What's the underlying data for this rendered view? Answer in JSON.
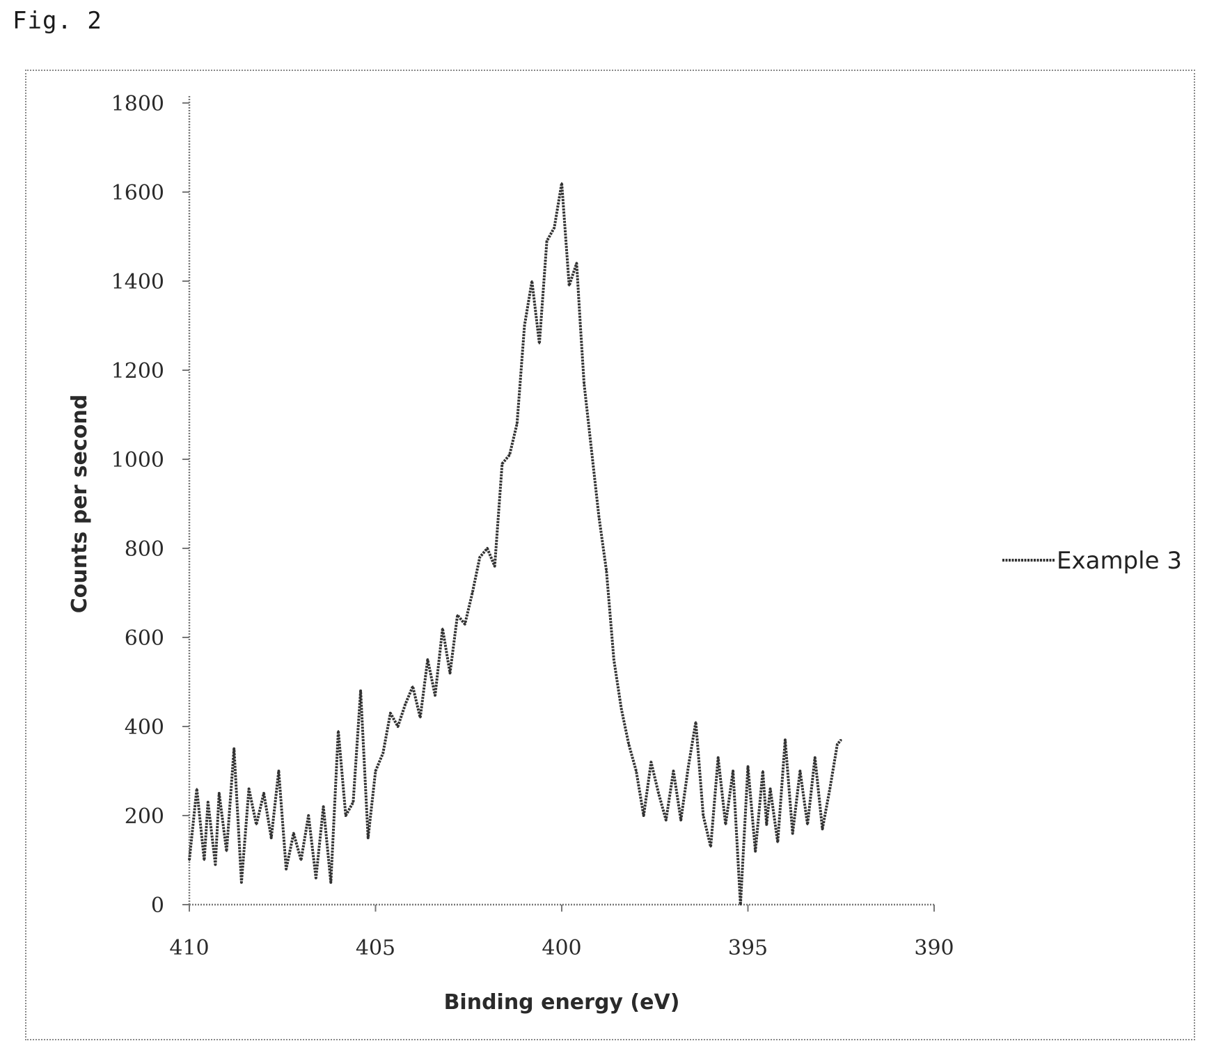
{
  "figure_label": "Fig. 2",
  "chart_data": {
    "type": "line",
    "title": "",
    "xlabel": "Binding energy (eV)",
    "ylabel": "Counts per second",
    "xlim": [
      410,
      390
    ],
    "ylim": [
      0,
      1800
    ],
    "x_reversed": true,
    "xticks": [
      "410",
      "405",
      "400",
      "395",
      "390"
    ],
    "yticks": [
      "0",
      "200",
      "400",
      "600",
      "800",
      "1000",
      "1200",
      "1400",
      "1600",
      "1800"
    ],
    "grid": false,
    "legend_position": "right",
    "series": [
      {
        "name": "Example 3",
        "color": "#333333",
        "x": [
          410,
          409.8,
          409.6,
          409.5,
          409.3,
          409.2,
          409.0,
          408.8,
          408.6,
          408.4,
          408.2,
          408.0,
          407.8,
          407.6,
          407.4,
          407.2,
          407.0,
          406.8,
          406.6,
          406.4,
          406.2,
          406.0,
          405.8,
          405.6,
          405.4,
          405.2,
          405.0,
          404.8,
          404.6,
          404.4,
          404.2,
          404.0,
          403.8,
          403.6,
          403.4,
          403.2,
          403.0,
          402.8,
          402.6,
          402.4,
          402.2,
          402.0,
          401.8,
          401.6,
          401.4,
          401.2,
          401.0,
          400.8,
          400.6,
          400.4,
          400.2,
          400.0,
          399.8,
          399.6,
          399.5,
          399.4,
          399.2,
          399.0,
          398.8,
          398.6,
          398.4,
          398.2,
          398.0,
          397.8,
          397.6,
          397.4,
          397.2,
          397.0,
          396.8,
          396.6,
          396.4,
          396.2,
          396.0,
          395.8,
          395.6,
          395.4,
          395.2,
          395.0,
          394.8,
          394.6,
          394.5,
          394.4,
          394.2,
          394.0,
          393.8,
          393.6,
          393.4,
          393.2,
          393.0,
          392.8,
          392.6,
          392.5
        ],
        "y": [
          100,
          260,
          100,
          230,
          90,
          250,
          120,
          350,
          50,
          260,
          180,
          250,
          150,
          300,
          80,
          160,
          100,
          200,
          60,
          220,
          50,
          390,
          200,
          230,
          480,
          150,
          300,
          340,
          430,
          400,
          450,
          490,
          420,
          550,
          470,
          620,
          520,
          650,
          630,
          700,
          780,
          800,
          760,
          990,
          1010,
          1080,
          1300,
          1400,
          1260,
          1490,
          1520,
          1620,
          1390,
          1440,
          1300,
          1170,
          1020,
          870,
          750,
          550,
          440,
          360,
          300,
          200,
          320,
          250,
          190,
          300,
          190,
          310,
          410,
          200,
          130,
          330,
          180,
          300,
          0,
          310,
          120,
          300,
          180,
          260,
          140,
          370,
          160,
          300,
          180,
          330,
          170,
          260,
          360,
          370
        ]
      }
    ]
  }
}
